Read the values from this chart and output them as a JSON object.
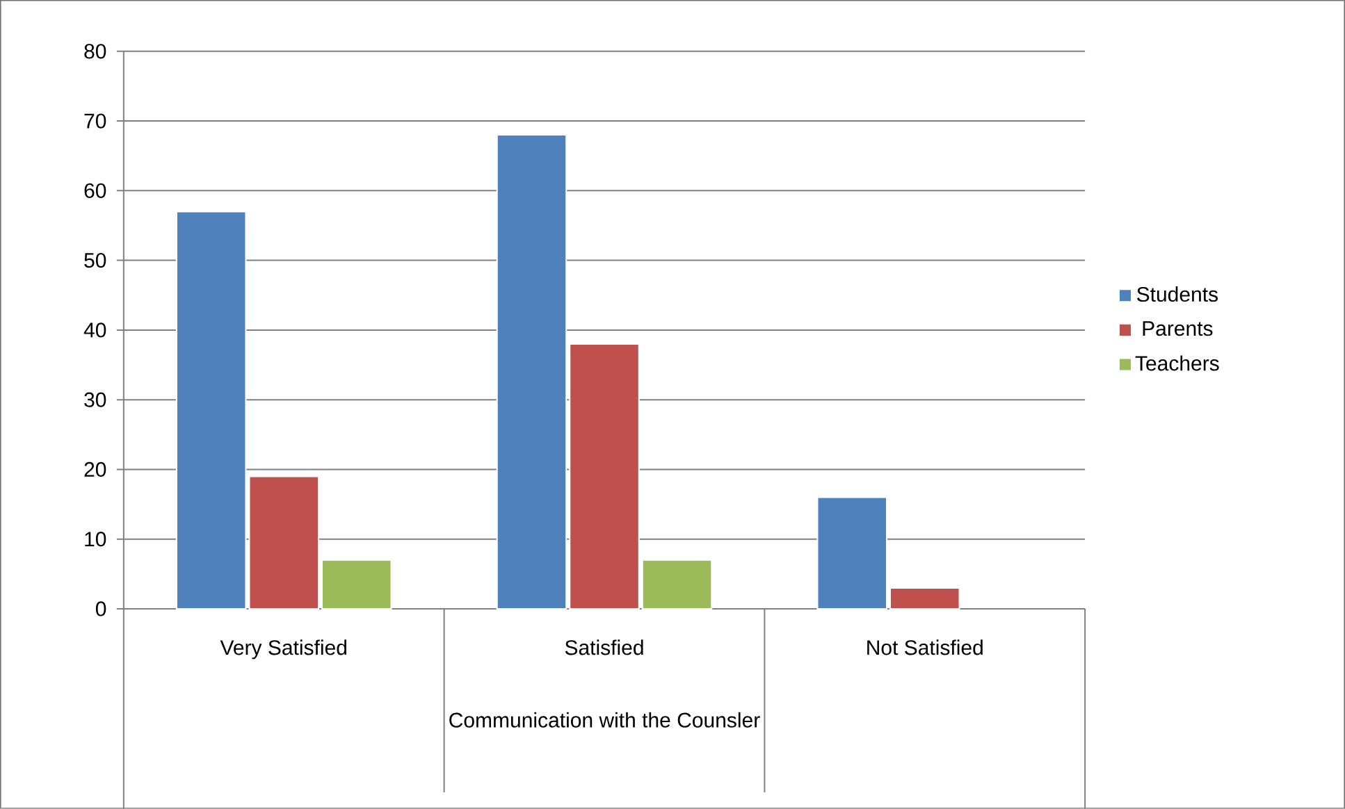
{
  "chart_data": {
    "type": "bar",
    "xlabel": "Communication with the Counsler",
    "categories": [
      "Very Satisfied",
      "Satisfied",
      "Not Satisfied"
    ],
    "series": [
      {
        "name": "Students",
        "color": "#4f81bd",
        "values": [
          57,
          68,
          16
        ]
      },
      {
        "name": "Parents",
        "color": "#c0504d",
        "values": [
          19,
          38,
          3
        ]
      },
      {
        "name": "Teachers",
        "color": "#9bbb59",
        "values": [
          7,
          7,
          null
        ]
      }
    ],
    "ylim": [
      0,
      80
    ],
    "yticks": [
      0,
      10,
      20,
      30,
      40,
      50,
      60,
      70,
      80
    ],
    "grid": "y",
    "legend": "right"
  }
}
